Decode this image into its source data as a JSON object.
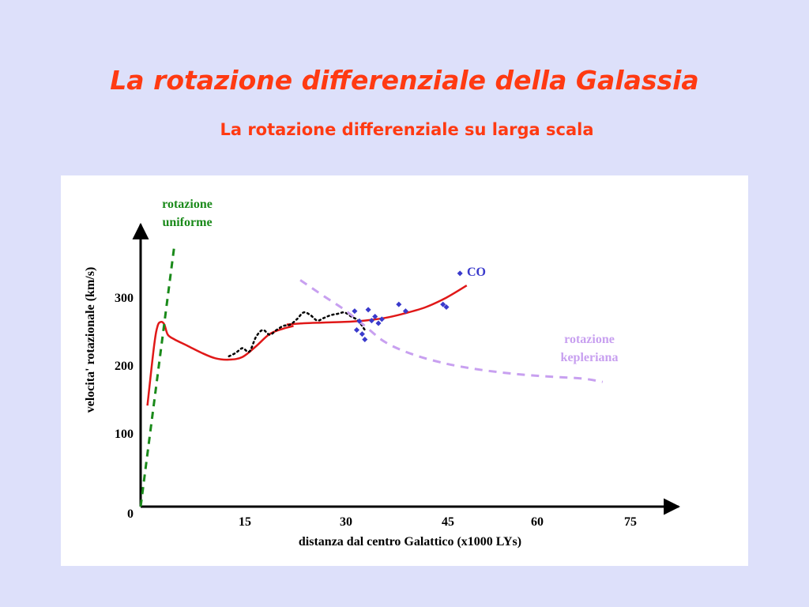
{
  "slide": {
    "title": "La rotazione differenziale della Galassia",
    "subtitle": "La rotazione differenziale su larga scala"
  },
  "colors": {
    "title": "#ff3a12",
    "background": "#dde0fa",
    "rotation_curve": "#e01818",
    "uniform": "#1a8a1a",
    "keplerian": "#c8a0f0",
    "co_points": "#3a3acc",
    "hi_dots": "#000000"
  },
  "chart_data": {
    "type": "line",
    "xlabel": "distanza dal centro Galattico (x1000 LYs)",
    "ylabel": "velocita' rotazionale (km/s)",
    "x_ticks": [
      "15",
      "30",
      "45",
      "60",
      "75"
    ],
    "y_ticks": [
      "0",
      "100",
      "200",
      "300"
    ],
    "grid": false,
    "annotations": {
      "uniform": [
        "rotazione",
        "uniforme"
      ],
      "keplerian": [
        "rotazione",
        "kepleriana"
      ],
      "co": "CO"
    },
    "series": [
      {
        "style": "solid-red",
        "x": [
          1,
          2,
          2.5,
          3,
          3.5,
          4,
          5,
          7,
          9,
          11,
          13,
          15,
          17,
          19,
          21,
          22.5
        ],
        "y": [
          150,
          240,
          268,
          274,
          270,
          255,
          248,
          238,
          228,
          220,
          218,
          222,
          238,
          256,
          264,
          268
        ]
      },
      {
        "style": "solid-red",
        "x": [
          21.5,
          24,
          27,
          30,
          33,
          36,
          39,
          42,
          45,
          48
        ],
        "y": [
          270,
          272,
          273,
          274,
          276,
          280,
          287,
          296,
          310,
          328
        ]
      },
      {
        "style": "dotted-black",
        "x": [
          13,
          14,
          15,
          16,
          17,
          18,
          19,
          20,
          21,
          22,
          23,
          24,
          25,
          26,
          27,
          28,
          29,
          30,
          31,
          32,
          33
        ],
        "y": [
          223,
          228,
          235,
          230,
          252,
          262,
          255,
          262,
          268,
          270,
          278,
          288,
          284,
          276,
          280,
          284,
          286,
          288,
          282,
          276,
          262
        ]
      },
      {
        "style": "dashed-green",
        "x": [
          0,
          5
        ],
        "y": [
          0,
          390
        ]
      },
      {
        "style": "dashed-violet",
        "x": [
          23.5,
          27,
          30,
          33,
          36,
          40,
          45,
          50,
          55,
          60,
          65,
          68
        ],
        "y": [
          336,
          312,
          292,
          268,
          244,
          226,
          212,
          203,
          197,
          193,
          190,
          185
        ]
      }
    ],
    "co_points": {
      "x": [
        31.5,
        31.8,
        32.2,
        32.6,
        33,
        33.5,
        34,
        34.5,
        35,
        35.5,
        38,
        39,
        44.5,
        45,
        47
      ],
      "y": [
        290,
        262,
        275,
        256,
        248,
        292,
        276,
        282,
        272,
        278,
        300,
        290,
        300,
        296,
        346
      ]
    }
  }
}
